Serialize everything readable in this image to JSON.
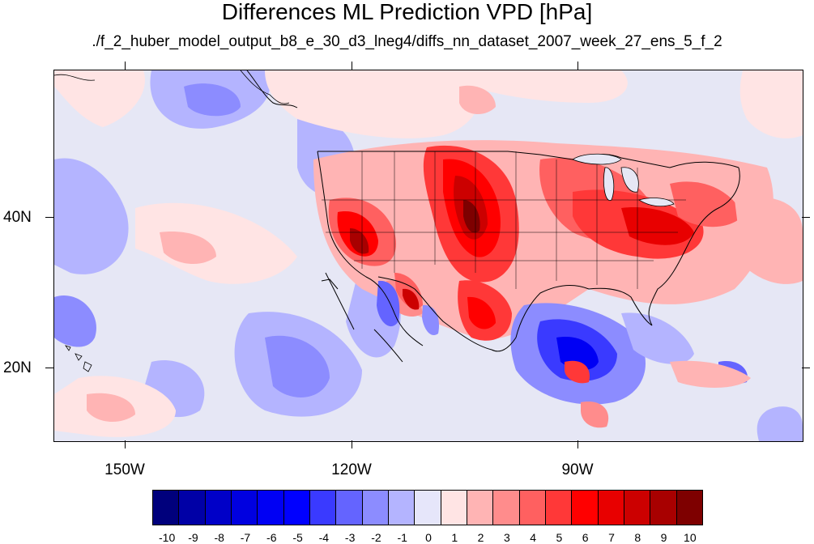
{
  "title": "Differences ML Prediction VPD [hPa]",
  "subtitle": "./f_2_huber_model_output_b8_e_30_d3_lneg4/diffs_nn_dataset_2007_week_27_ens_5_f_2",
  "lat_labels": [
    "40N",
    "20N"
  ],
  "lon_labels": [
    "150W",
    "120W",
    "90W"
  ],
  "colorbar": {
    "labels": [
      "-10",
      "-9",
      "-8",
      "-7",
      "-6",
      "-5",
      "-4",
      "-3",
      "-2",
      "-1",
      "0",
      "1",
      "2",
      "3",
      "4",
      "5",
      "6",
      "7",
      "8",
      "9",
      "10"
    ],
    "colors": [
      "#00007c",
      "#0000a6",
      "#0000c8",
      "#0000e0",
      "#0000f4",
      "#0000ff",
      "#3a3aff",
      "#6464ff",
      "#8c8cff",
      "#b4b4ff",
      "#e6e6fa",
      "#ffe4e4",
      "#ffb4b4",
      "#ff8c8c",
      "#ff6060",
      "#ff3838",
      "#ff0000",
      "#e80000",
      "#cc0000",
      "#a80000",
      "#7e0000"
    ]
  },
  "map": {
    "background_color": "#e6e7f5",
    "coastline_color": "#000000"
  }
}
